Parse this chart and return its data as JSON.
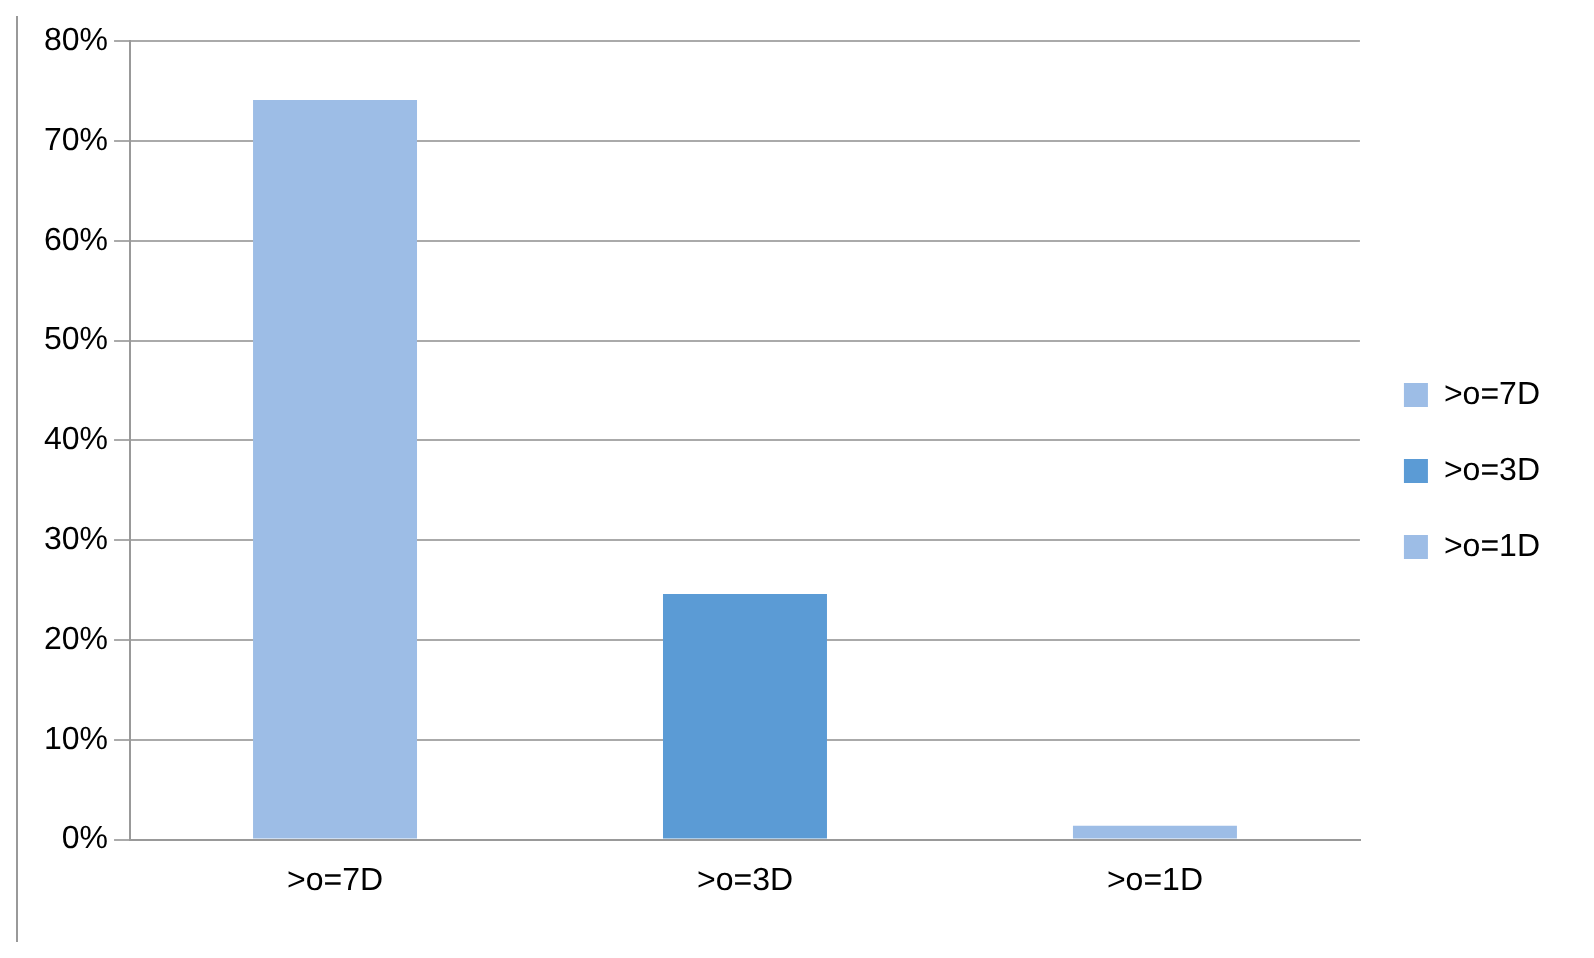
{
  "chart_data": {
    "type": "bar",
    "categories": [
      ">o=7D",
      ">o=3D",
      ">o=1D"
    ],
    "series": [
      {
        "name": ">o=7D",
        "color": "#9dbde6",
        "values": [
          74.1,
          null,
          null
        ]
      },
      {
        "name": ">o=3D",
        "color": "#5b9bd5",
        "values": [
          null,
          24.6,
          null
        ]
      },
      {
        "name": ">o=1D",
        "color": "#9dbde6",
        "values": [
          null,
          null,
          1.4
        ]
      }
    ],
    "ylim": [
      0,
      80
    ],
    "yticks": [
      {
        "value": 0,
        "label": "0%"
      },
      {
        "value": 10,
        "label": "10%"
      },
      {
        "value": 20,
        "label": "20%"
      },
      {
        "value": 30,
        "label": "30%"
      },
      {
        "value": 40,
        "label": "40%"
      },
      {
        "value": 50,
        "label": "50%"
      },
      {
        "value": 60,
        "label": "60%"
      },
      {
        "value": 70,
        "label": "70%"
      },
      {
        "value": 80,
        "label": "80%"
      }
    ],
    "grid": "y",
    "legend": "right"
  }
}
